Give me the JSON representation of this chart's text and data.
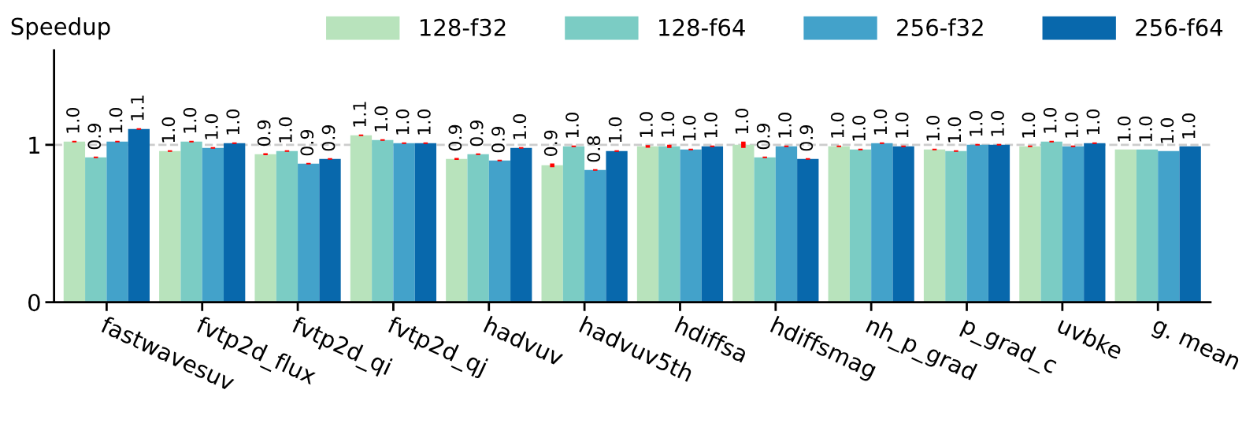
{
  "chart_data": {
    "type": "bar",
    "ylabel": "Speedup",
    "categories": [
      "fastwavesuv",
      "fvtp2d_flux",
      "fvtp2d_qi",
      "fvtp2d_qj",
      "hadvuv",
      "hadvuv5th",
      "hdiffsa",
      "hdiffsmag",
      "nh_p_grad",
      "p_grad_c",
      "uvbke",
      "g. mean"
    ],
    "series": [
      {
        "name": "128-f32",
        "color": "#b8e3bc",
        "values": [
          1.02,
          0.96,
          0.94,
          1.06,
          0.91,
          0.87,
          0.99,
          1.0,
          0.99,
          0.97,
          0.99,
          0.97
        ],
        "errors": [
          0.005,
          0.005,
          0.006,
          0.005,
          0.006,
          0.012,
          0.008,
          0.02,
          0.005,
          0.005,
          0.005,
          null
        ],
        "value_labels": [
          "1.0",
          "1.0",
          "0.9",
          "1.1",
          "0.9",
          "0.9",
          "1.0",
          "1.0",
          "1.0",
          "1.0",
          "1.0",
          "1.0"
        ]
      },
      {
        "name": "128-f64",
        "color": "#7bccc4",
        "values": [
          0.92,
          1.02,
          0.96,
          1.03,
          0.94,
          0.99,
          0.99,
          0.92,
          0.97,
          0.96,
          1.02,
          0.97
        ],
        "errors": [
          0.005,
          0.005,
          0.005,
          0.005,
          0.005,
          0.005,
          0.01,
          0.005,
          0.005,
          0.005,
          0.005,
          null
        ],
        "value_labels": [
          "0.9",
          "1.0",
          "1.0",
          "1.0",
          "0.9",
          "1.0",
          "1.0",
          "0.9",
          "1.0",
          "1.0",
          "1.0",
          "1.0"
        ]
      },
      {
        "name": "256-f32",
        "color": "#43a2ca",
        "values": [
          1.02,
          0.98,
          0.88,
          1.01,
          0.9,
          0.84,
          0.97,
          0.99,
          1.01,
          1.0,
          0.99,
          0.96
        ],
        "errors": [
          0.005,
          0.005,
          0.005,
          0.005,
          0.005,
          0.005,
          0.005,
          0.005,
          0.005,
          0.005,
          0.005,
          null
        ],
        "value_labels": [
          "1.0",
          "1.0",
          "0.9",
          "1.0",
          "0.9",
          "0.8",
          "1.0",
          "1.0",
          "1.0",
          "1.0",
          "1.0",
          "1.0"
        ]
      },
      {
        "name": "256-f64",
        "color": "#0868ac",
        "values": [
          1.1,
          1.01,
          0.91,
          1.01,
          0.98,
          0.96,
          0.99,
          0.91,
          0.99,
          1.0,
          1.01,
          0.99
        ],
        "errors": [
          0.005,
          0.005,
          0.005,
          0.005,
          0.005,
          0.005,
          0.005,
          0.005,
          0.005,
          0.005,
          0.005,
          null
        ],
        "value_labels": [
          "1.1",
          "1.0",
          "0.9",
          "1.0",
          "1.0",
          "1.0",
          "1.0",
          "0.9",
          "1.0",
          "1.0",
          "1.0",
          "1.0"
        ]
      }
    ],
    "ylim": [
      0,
      1.6
    ],
    "yticks": [
      0,
      1
    ],
    "ref_lines": [
      {
        "axis": "y",
        "value": 1,
        "color": "#cccccc",
        "line_style": "dashed"
      }
    ],
    "legend": "top",
    "grid": false
  }
}
